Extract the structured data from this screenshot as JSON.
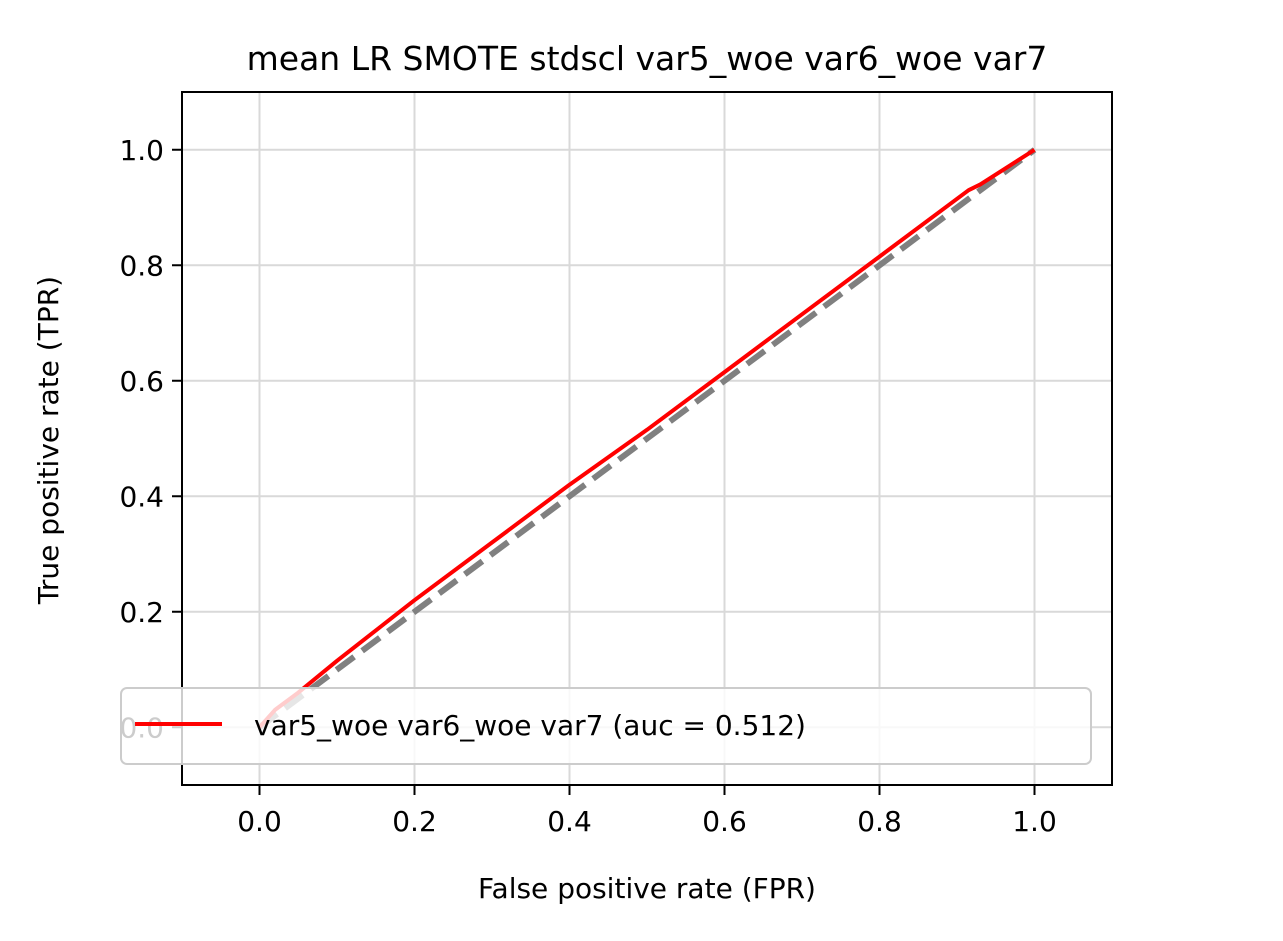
{
  "chart_data": {
    "type": "line",
    "title": "mean LR SMOTE stdscl var5_woe var6_woe var7",
    "xlabel": "False positive rate (FPR)",
    "ylabel": "True positive rate (TPR)",
    "xlim": [
      -0.1,
      1.1
    ],
    "ylim": [
      -0.1,
      1.1
    ],
    "xticks": [
      0.0,
      0.2,
      0.4,
      0.6,
      0.8,
      1.0
    ],
    "yticks": [
      0.0,
      0.2,
      0.4,
      0.6,
      0.8,
      1.0
    ],
    "xtick_labels": [
      "0.0",
      "0.2",
      "0.4",
      "0.6",
      "0.8",
      "1.0"
    ],
    "ytick_labels": [
      "0.0",
      "0.2",
      "0.4",
      "0.6",
      "0.8",
      "1.0"
    ],
    "grid": true,
    "legend_position": "lower-right",
    "series": [
      {
        "name": "var5_woe var6_woe var7 (auc = 0.512)",
        "color": "#ff0000",
        "style": "solid",
        "x": [
          0.0,
          0.02,
          0.05,
          0.1,
          0.2,
          0.3,
          0.4,
          0.5,
          0.6,
          0.7,
          0.8,
          0.915,
          0.93,
          1.0
        ],
        "y": [
          0.0,
          0.03,
          0.06,
          0.115,
          0.22,
          0.32,
          0.42,
          0.515,
          0.615,
          0.715,
          0.815,
          0.93,
          0.94,
          1.0
        ]
      },
      {
        "color": "#808080",
        "style": "dashed",
        "x": [
          0.0,
          1.0
        ],
        "y": [
          0.0,
          1.0
        ]
      }
    ]
  }
}
